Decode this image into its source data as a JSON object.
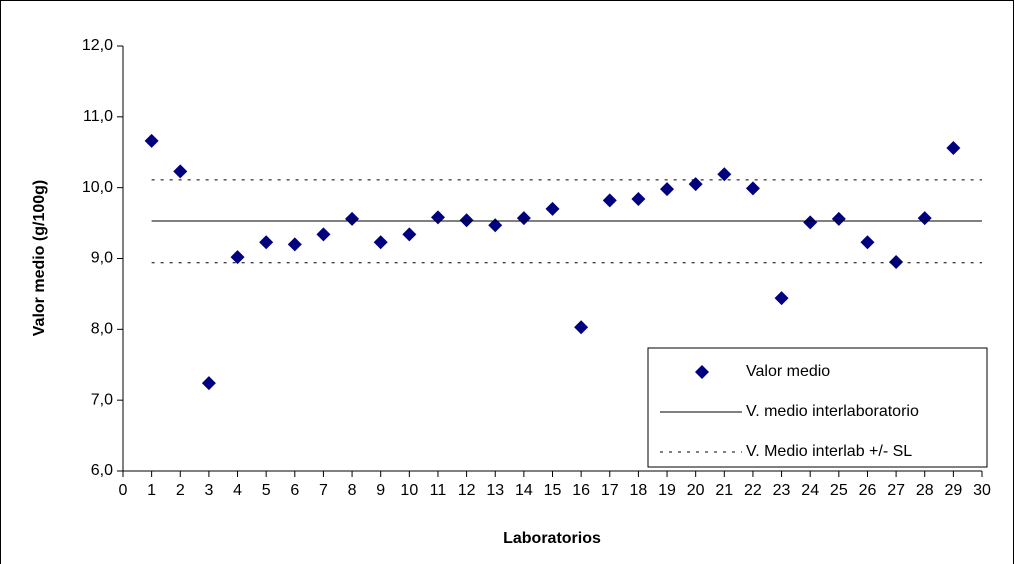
{
  "chart_data": {
    "type": "scatter",
    "xlabel": "Laboratorios",
    "ylabel": "Valor medio (g/100g)",
    "xlim": [
      0,
      30
    ],
    "xticks": [
      0,
      1,
      2,
      3,
      4,
      5,
      6,
      7,
      8,
      9,
      10,
      11,
      12,
      13,
      14,
      15,
      16,
      17,
      18,
      19,
      20,
      21,
      22,
      23,
      24,
      25,
      26,
      27,
      28,
      29,
      30
    ],
    "ylim": [
      6,
      12
    ],
    "yticks": [
      {
        "value": 6,
        "label": "6,0"
      },
      {
        "value": 7,
        "label": "7,0"
      },
      {
        "value": 8,
        "label": "8,0"
      },
      {
        "value": 9,
        "label": "9,0"
      },
      {
        "value": 10,
        "label": "10,0"
      },
      {
        "value": 11,
        "label": "11,0"
      },
      {
        "value": 12,
        "label": "12,0"
      }
    ],
    "series": [
      {
        "name": "Valor medio",
        "kind": "marker",
        "color": "#000080",
        "x": [
          1,
          2,
          3,
          4,
          5,
          6,
          7,
          8,
          9,
          10,
          11,
          12,
          13,
          14,
          15,
          16,
          17,
          18,
          19,
          20,
          21,
          22,
          23,
          24,
          25,
          26,
          27,
          28,
          29
        ],
        "values": [
          10.66,
          10.23,
          7.24,
          9.02,
          9.23,
          9.2,
          9.34,
          9.56,
          9.23,
          9.34,
          9.58,
          9.54,
          9.47,
          9.57,
          9.7,
          8.03,
          9.82,
          9.84,
          9.98,
          10.05,
          10.19,
          9.99,
          8.44,
          9.51,
          9.56,
          9.23,
          8.95,
          9.57,
          10.56
        ]
      },
      {
        "name": "V. medio interlaboratorio",
        "kind": "solid",
        "color": "#000000",
        "x": [
          1,
          30
        ],
        "values": [
          9.53,
          9.53
        ]
      },
      {
        "name": "V. Medio interlab +/- SL",
        "kind": "dotted",
        "color": "#000000",
        "x": [
          1,
          30,
          null,
          1,
          30
        ],
        "values": [
          10.11,
          10.11,
          null,
          8.94,
          8.94
        ]
      }
    ]
  }
}
